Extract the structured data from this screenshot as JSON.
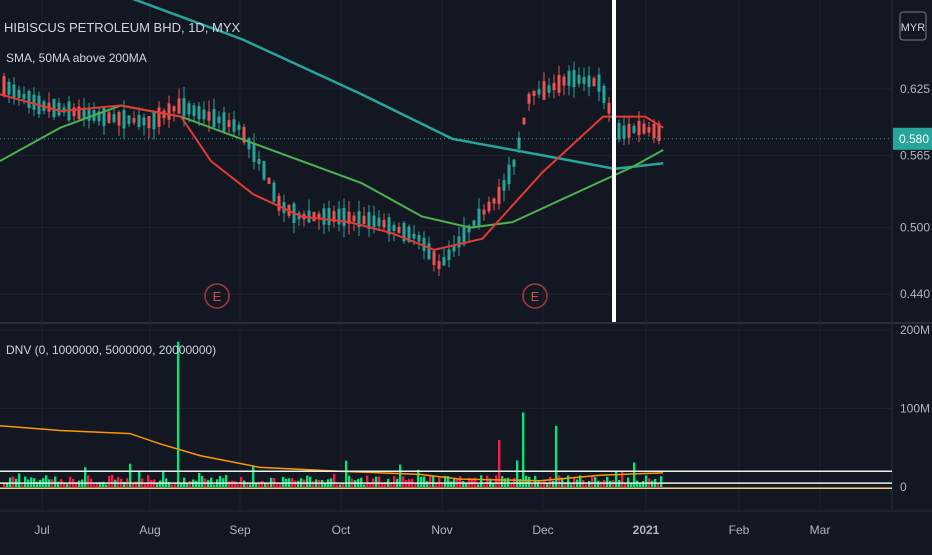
{
  "header": {
    "title": "HIBISCUS PETROLEUM BHD, 1D, MYX",
    "subtitle": "SMA, 50MA above 200MA",
    "currency": "MYR"
  },
  "price_axis": {
    "labels": [
      "0.625",
      "0.565",
      "0.500",
      "0.440"
    ],
    "last_price": "0.580"
  },
  "volume_axis": {
    "labels": [
      "200M",
      "100M",
      "0"
    ]
  },
  "time_axis": {
    "labels": [
      "Jul",
      "Aug",
      "Sep",
      "Oct",
      "Nov",
      "Dec",
      "2021",
      "Feb",
      "Mar"
    ]
  },
  "earnings_markers": [
    "E",
    "E"
  ],
  "indicator": {
    "label": "DNV (0, 1000000, 5000000, 20000000)"
  },
  "colors": {
    "background": "#131722",
    "up": "#26a69a",
    "down": "#ef5350",
    "sma_fast": "#e53935",
    "sma_mid": "#4caf50",
    "sma_slow": "#26a69a",
    "vol_up": "#00e676",
    "vol_down": "#ff1744",
    "vol_avg": "#ff9800"
  },
  "chart_data": [
    {
      "type": "candlestick",
      "title": "HIBISCUS PETROLEUM BHD, 1D, MYX",
      "ylim": [
        0.415,
        0.705
      ],
      "last_price": 0.58,
      "sma_fast": [
        [
          0.0,
          0.62
        ],
        [
          0.1,
          0.605
        ],
        [
          0.2,
          0.61
        ],
        [
          0.3,
          0.6
        ],
        [
          0.35,
          0.56
        ],
        [
          0.42,
          0.53
        ],
        [
          0.5,
          0.51
        ],
        [
          0.58,
          0.505
        ],
        [
          0.65,
          0.495
        ],
        [
          0.72,
          0.48
        ],
        [
          0.8,
          0.49
        ],
        [
          0.9,
          0.55
        ],
        [
          1.0,
          0.6
        ],
        [
          1.07,
          0.6
        ],
        [
          1.1,
          0.59
        ]
      ],
      "sma_mid": [
        [
          0.0,
          0.56
        ],
        [
          0.1,
          0.59
        ],
        [
          0.2,
          0.61
        ],
        [
          0.3,
          0.6
        ],
        [
          0.4,
          0.58
        ],
        [
          0.5,
          0.56
        ],
        [
          0.6,
          0.54
        ],
        [
          0.7,
          0.51
        ],
        [
          0.78,
          0.5
        ],
        [
          0.85,
          0.505
        ],
        [
          0.95,
          0.53
        ],
        [
          1.05,
          0.555
        ],
        [
          1.1,
          0.57
        ]
      ],
      "sma_slow": [
        [
          0.0,
          0.74
        ],
        [
          0.2,
          0.71
        ],
        [
          0.4,
          0.67
        ],
        [
          0.6,
          0.62
        ],
        [
          0.75,
          0.58
        ],
        [
          0.9,
          0.565
        ],
        [
          1.02,
          0.553
        ],
        [
          1.1,
          0.558
        ]
      ]
    },
    {
      "type": "bar",
      "title": "DNV (0, 1000000, 5000000, 20000000)",
      "ylim": [
        0,
        200
      ],
      "unit": "M",
      "thresholds": [
        1,
        5,
        20
      ],
      "spikes": [
        {
          "month": "Aug",
          "value": 185
        },
        {
          "month": "Dec",
          "value": 95
        }
      ]
    }
  ]
}
